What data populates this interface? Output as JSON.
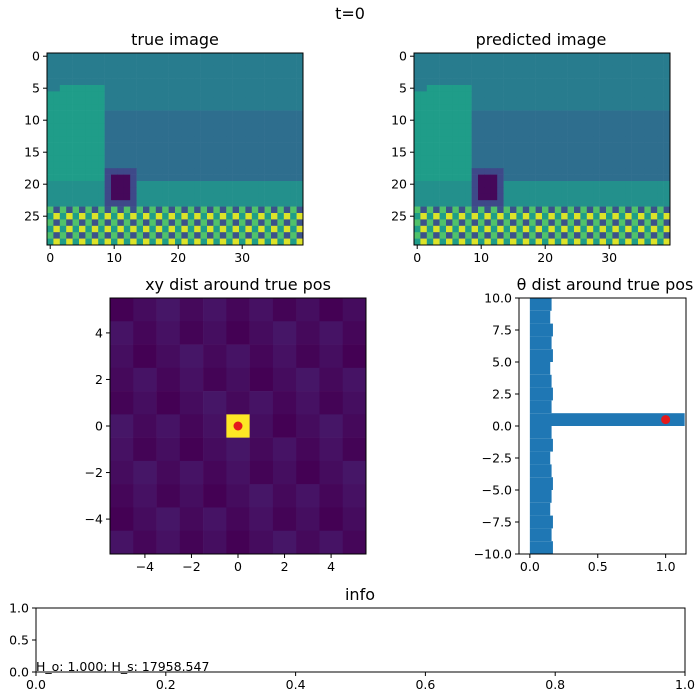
{
  "figure": {
    "suptitle": "t=0"
  },
  "chart_data": [
    {
      "type": "heatmap",
      "title": "true image",
      "rows": 30,
      "cols": 40,
      "x_ticks": [
        "0",
        "10",
        "20",
        "30"
      ],
      "y_ticks": [
        "0",
        "5",
        "10",
        "15",
        "20",
        "25"
      ],
      "colormap": "viridis",
      "scene": {
        "sky_value": 0.42,
        "far_wall_value": 0.36,
        "near_wall_value": 0.55,
        "floor_value": 0.5,
        "dark_block": {
          "rows": [
            19,
            22
          ],
          "cols": [
            10,
            12
          ],
          "value": 0.02
        },
        "block_border_value": 0.22,
        "checker_start_row": 24,
        "checker_values": [
          0.72,
          0.95,
          0.25,
          0.55
        ]
      }
    },
    {
      "type": "heatmap",
      "title": "predicted image",
      "rows": 30,
      "cols": 40,
      "x_ticks": [
        "0",
        "10",
        "20",
        "30"
      ],
      "y_ticks": [
        "0",
        "5",
        "10",
        "15",
        "20",
        "25"
      ],
      "colormap": "viridis",
      "same_as": "true image"
    },
    {
      "type": "heatmap",
      "title": "xy dist around true pos",
      "xlim": [
        -5.5,
        5.5
      ],
      "ylim": [
        -5.5,
        5.5
      ],
      "x_ticks": [
        -4,
        -2,
        0,
        2,
        4
      ],
      "y_ticks": [
        -4,
        -2,
        0,
        2,
        4
      ],
      "cells": 11,
      "peak": {
        "x": 0,
        "y": 0,
        "value": 1.0
      },
      "background_value_range": [
        0.0,
        0.06
      ],
      "true_marker": {
        "x": 0,
        "y": 0,
        "color": "#e41a1c"
      },
      "colormap": "viridis"
    },
    {
      "type": "bar",
      "orientation": "horizontal",
      "title": "θ dist around true pos",
      "xlim": [
        -0.08,
        1.15
      ],
      "ylim": [
        -10,
        10
      ],
      "x_ticks": [
        "0.0",
        "0.5",
        "1.0"
      ],
      "y_ticks": [
        "10.0",
        "7.5",
        "5.0",
        "2.5",
        "0.0",
        "−2.5",
        "−5.0",
        "−7.5",
        "−10.0"
      ],
      "y_tick_values": [
        10,
        7.5,
        5,
        2.5,
        0,
        -2.5,
        -5,
        -7.5,
        -10
      ],
      "bar_y_start": -10,
      "bar_y_step": 1,
      "bar_height": 1,
      "values": [
        0.17,
        0.16,
        0.17,
        0.15,
        0.16,
        0.17,
        0.16,
        0.15,
        0.17,
        0.16,
        1.14,
        0.16,
        0.17,
        0.16,
        0.15,
        0.17,
        0.16,
        0.17,
        0.15,
        0.16
      ],
      "bar_color": "#1f77b4",
      "true_marker": {
        "x": 1.0,
        "y": 0.5,
        "color": "#e41a1c"
      }
    },
    {
      "type": "table",
      "title": "info",
      "xlim": [
        0,
        1
      ],
      "ylim": [
        0,
        1
      ],
      "x_ticks": [
        "0.0",
        "0.2",
        "0.4",
        "0.6",
        "0.8",
        "1.0"
      ],
      "y_ticks": [
        "0.0",
        "0.5",
        "1.0"
      ],
      "text": "H_o: 1.000; H_s: 17958.547"
    }
  ]
}
